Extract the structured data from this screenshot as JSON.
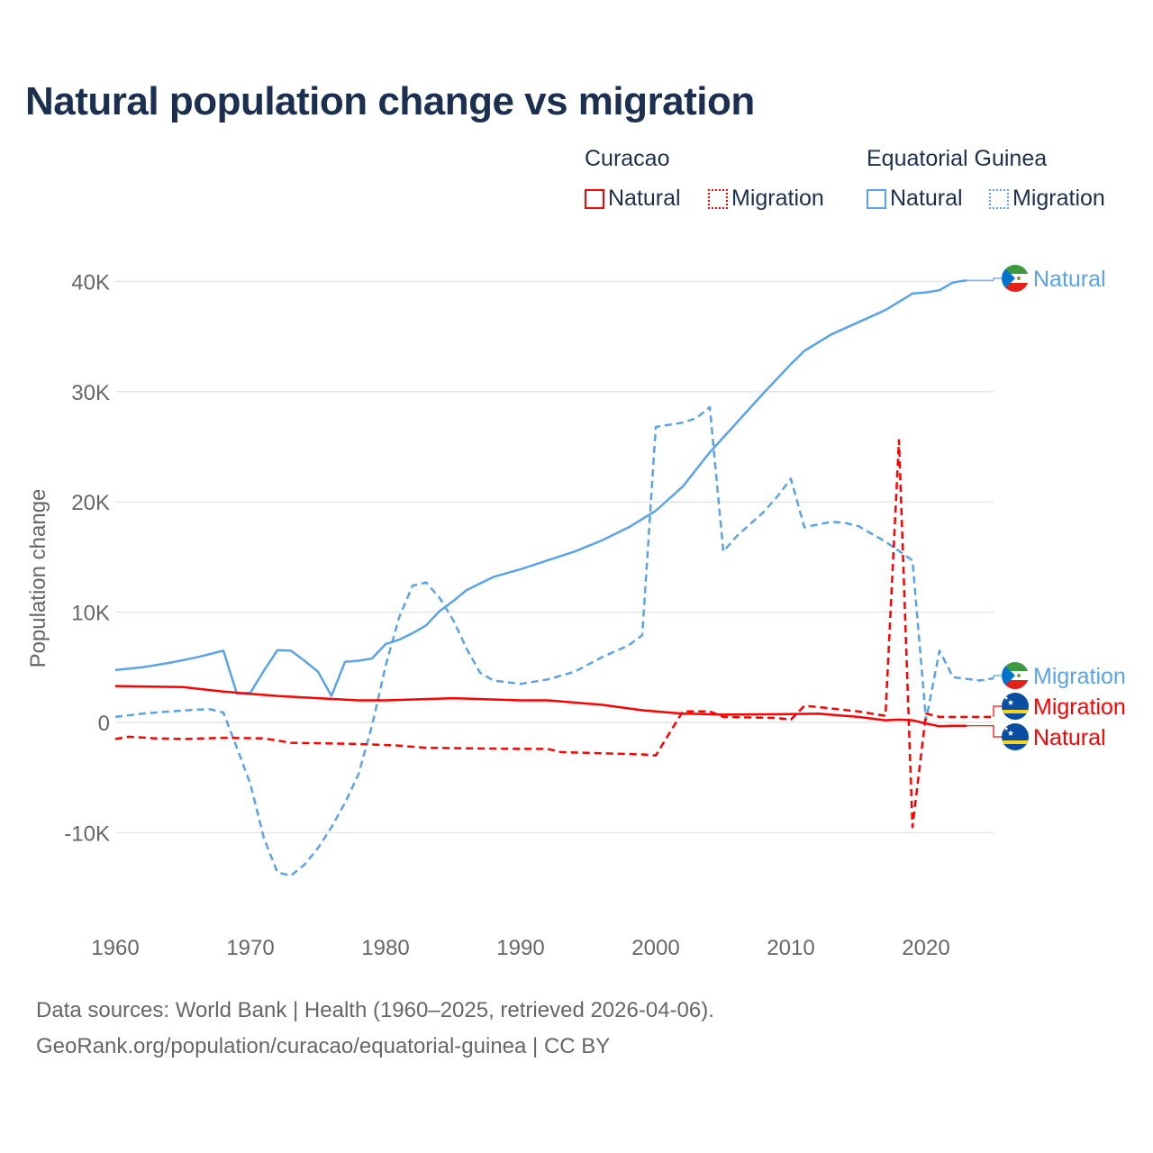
{
  "title": "Natural population change vs migration",
  "legend": {
    "groups": [
      {
        "name": "Curacao",
        "color": "#ff0000",
        "items": [
          "Natural",
          "Migration"
        ]
      },
      {
        "name": "Equatorial Guinea",
        "color": "#5ba3e8",
        "items": [
          "Natural",
          "Migration"
        ]
      }
    ]
  },
  "footer": {
    "line1": "Data sources: World Bank | Health (1960–2025, retrieved 2026-04-06).",
    "line2": "GeoRank.org/population/curacao/equatorial-guinea | CC BY"
  },
  "chart_data": {
    "type": "line",
    "title": "Natural population change vs migration",
    "xlabel": "",
    "ylabel": "Population change",
    "xlim": [
      1960,
      2025
    ],
    "ylim": [
      -15000,
      42000
    ],
    "x_ticks": [
      1960,
      1970,
      1980,
      1990,
      2000,
      2010,
      2020
    ],
    "x_tick_labels": [
      "1960",
      "1970",
      "1980",
      "1990",
      "2000",
      "2010",
      "2020"
    ],
    "y_ticks": [
      -10000,
      0,
      10000,
      20000,
      30000,
      40000
    ],
    "y_tick_labels": [
      "-10K",
      "0",
      "10K",
      "20K",
      "30K",
      "40K"
    ],
    "grid": true,
    "series": [
      {
        "name": "Equatorial Guinea Natural",
        "label": "Natural",
        "country": "Equatorial Guinea",
        "color": "#5ba3e8",
        "dash": false,
        "points": [
          [
            1960,
            4750
          ],
          [
            1962,
            5000
          ],
          [
            1964,
            5400
          ],
          [
            1966,
            5900
          ],
          [
            1968,
            6500
          ],
          [
            1969,
            2600
          ],
          [
            1970,
            2700
          ],
          [
            1971,
            4700
          ],
          [
            1972,
            6550
          ],
          [
            1973,
            6500
          ],
          [
            1974,
            5600
          ],
          [
            1975,
            4600
          ],
          [
            1976,
            2400
          ],
          [
            1977,
            5500
          ],
          [
            1978,
            5600
          ],
          [
            1979,
            5800
          ],
          [
            1980,
            7100
          ],
          [
            1981,
            7500
          ],
          [
            1982,
            8100
          ],
          [
            1983,
            8800
          ],
          [
            1984,
            10100
          ],
          [
            1985,
            11000
          ],
          [
            1986,
            12000
          ],
          [
            1988,
            13200
          ],
          [
            1990,
            13900
          ],
          [
            1992,
            14700
          ],
          [
            1994,
            15500
          ],
          [
            1996,
            16500
          ],
          [
            1998,
            17700
          ],
          [
            2000,
            19200
          ],
          [
            2002,
            21400
          ],
          [
            2004,
            24500
          ],
          [
            2006,
            27200
          ],
          [
            2008,
            29900
          ],
          [
            2010,
            32500
          ],
          [
            2011,
            33700
          ],
          [
            2013,
            35200
          ],
          [
            2015,
            36300
          ],
          [
            2017,
            37400
          ],
          [
            2019,
            38900
          ],
          [
            2020,
            39000
          ],
          [
            2021,
            39200
          ],
          [
            2022,
            39900
          ],
          [
            2023,
            40100
          ]
        ]
      },
      {
        "name": "Equatorial Guinea Migration",
        "label": "Migration",
        "country": "Equatorial Guinea",
        "color": "#5ba3e8",
        "dash": true,
        "points": [
          [
            1960,
            500
          ],
          [
            1962,
            800
          ],
          [
            1964,
            1000
          ],
          [
            1966,
            1150
          ],
          [
            1967,
            1200
          ],
          [
            1968,
            900
          ],
          [
            1969,
            -2300
          ],
          [
            1970,
            -5600
          ],
          [
            1971,
            -10500
          ],
          [
            1972,
            -13600
          ],
          [
            1973,
            -13900
          ],
          [
            1974,
            -12900
          ],
          [
            1975,
            -11400
          ],
          [
            1976,
            -9500
          ],
          [
            1977,
            -7300
          ],
          [
            1978,
            -4700
          ],
          [
            1979,
            -300
          ],
          [
            1980,
            5100
          ],
          [
            1981,
            9500
          ],
          [
            1982,
            12400
          ],
          [
            1983,
            12700
          ],
          [
            1984,
            11300
          ],
          [
            1985,
            9300
          ],
          [
            1986,
            6700
          ],
          [
            1987,
            4500
          ],
          [
            1988,
            3800
          ],
          [
            1990,
            3500
          ],
          [
            1992,
            3900
          ],
          [
            1994,
            4600
          ],
          [
            1996,
            5900
          ],
          [
            1998,
            7000
          ],
          [
            1999,
            7900
          ],
          [
            2000,
            26800
          ],
          [
            2002,
            27200
          ],
          [
            2003,
            27600
          ],
          [
            2004,
            28600
          ],
          [
            2005,
            15500
          ],
          [
            2006,
            16900
          ],
          [
            2008,
            19100
          ],
          [
            2009,
            20500
          ],
          [
            2010,
            22100
          ],
          [
            2011,
            17700
          ],
          [
            2013,
            18200
          ],
          [
            2014,
            18100
          ],
          [
            2015,
            17800
          ],
          [
            2017,
            16400
          ],
          [
            2019,
            14700
          ],
          [
            2020,
            200
          ],
          [
            2021,
            6500
          ],
          [
            2022,
            4100
          ],
          [
            2024,
            3800
          ],
          [
            2025,
            4000
          ]
        ]
      },
      {
        "name": "Curacao Migration",
        "label": "Migration",
        "country": "Curacao",
        "color": "#ff0000",
        "dash": true,
        "points": [
          [
            1960,
            -1500
          ],
          [
            1961,
            -1300
          ],
          [
            1963,
            -1450
          ],
          [
            1965,
            -1500
          ],
          [
            1968,
            -1400
          ],
          [
            1971,
            -1450
          ],
          [
            1973,
            -1850
          ],
          [
            1978,
            -1950
          ],
          [
            1981,
            -2100
          ],
          [
            1983,
            -2300
          ],
          [
            1990,
            -2400
          ],
          [
            1992,
            -2400
          ],
          [
            1993,
            -2700
          ],
          [
            1999,
            -2900
          ],
          [
            2000,
            -3000
          ],
          [
            2002,
            1000
          ],
          [
            2004,
            1000
          ],
          [
            2005,
            500
          ],
          [
            2009,
            400
          ],
          [
            2010,
            250
          ],
          [
            2011,
            1500
          ],
          [
            2012,
            1400
          ],
          [
            2015,
            1000
          ],
          [
            2017,
            600
          ],
          [
            2018,
            25600
          ],
          [
            2019,
            -9500
          ],
          [
            2020,
            800
          ],
          [
            2021,
            500
          ],
          [
            2025,
            500
          ]
        ]
      },
      {
        "name": "Curacao Natural",
        "label": "Natural",
        "country": "Curacao",
        "color": "#ff0000",
        "dash": false,
        "points": [
          [
            1960,
            3300
          ],
          [
            1965,
            3200
          ],
          [
            1968,
            2800
          ],
          [
            1970,
            2600
          ],
          [
            1972,
            2400
          ],
          [
            1975,
            2200
          ],
          [
            1978,
            2000
          ],
          [
            1980,
            2000
          ],
          [
            1985,
            2200
          ],
          [
            1990,
            2000
          ],
          [
            1992,
            2000
          ],
          [
            1996,
            1600
          ],
          [
            1999,
            1100
          ],
          [
            2002,
            800
          ],
          [
            2005,
            700
          ],
          [
            2010,
            750
          ],
          [
            2012,
            800
          ],
          [
            2015,
            500
          ],
          [
            2017,
            200
          ],
          [
            2018,
            250
          ],
          [
            2019,
            200
          ],
          [
            2020,
            -100
          ],
          [
            2021,
            -350
          ],
          [
            2022,
            -300
          ],
          [
            2023,
            -300
          ]
        ]
      }
    ]
  }
}
